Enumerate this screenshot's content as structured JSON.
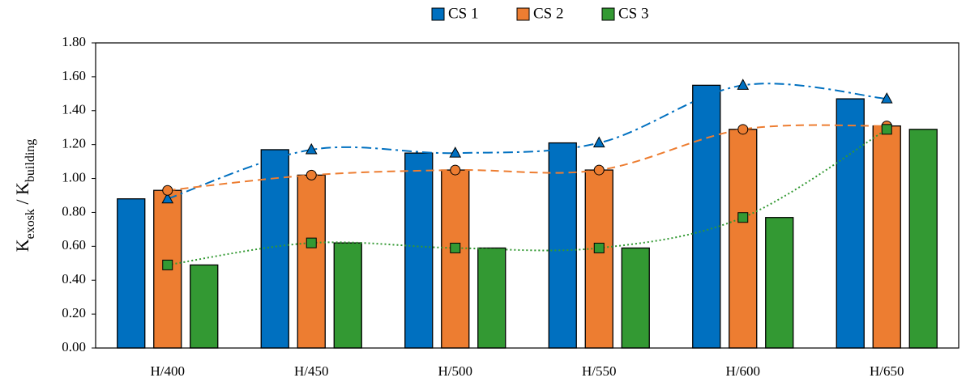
{
  "chart_data": {
    "type": "bar",
    "y_label_parts": [
      "K",
      "exosk",
      " / K",
      "building"
    ],
    "categories": [
      "H/400",
      "H/450",
      "H/500",
      "H/550",
      "H/600",
      "H/650"
    ],
    "series": [
      {
        "name": "CS 1",
        "color": "#0070c0",
        "marker": "triangle",
        "dash": "dashdot",
        "values": [
          0.88,
          1.17,
          1.15,
          1.21,
          1.55,
          1.47
        ]
      },
      {
        "name": "CS 2",
        "color": "#ed7d31",
        "marker": "circle",
        "dash": "dashed",
        "values": [
          0.93,
          1.02,
          1.05,
          1.05,
          1.29,
          1.31
        ]
      },
      {
        "name": "CS 3",
        "color": "#339933",
        "marker": "square",
        "dash": "dotted",
        "values": [
          0.49,
          0.62,
          0.59,
          0.59,
          0.77,
          1.29
        ]
      }
    ],
    "ylim": [
      0,
      1.8
    ],
    "yticks": [
      {
        "value": 0,
        "label": "0.00"
      },
      {
        "value": 0.2,
        "label": "0.20"
      },
      {
        "value": 0.4,
        "label": "0.40"
      },
      {
        "value": 0.6,
        "label": "0.60"
      },
      {
        "value": 0.8,
        "label": "0.80"
      },
      {
        "value": 1,
        "label": "1.00"
      },
      {
        "value": 1.2,
        "label": "1.20"
      },
      {
        "value": 1.4,
        "label": "1.40"
      },
      {
        "value": 1.6,
        "label": "1.60"
      },
      {
        "value": 1.8,
        "label": "1.80"
      }
    ],
    "grid": false,
    "legend": "top"
  }
}
